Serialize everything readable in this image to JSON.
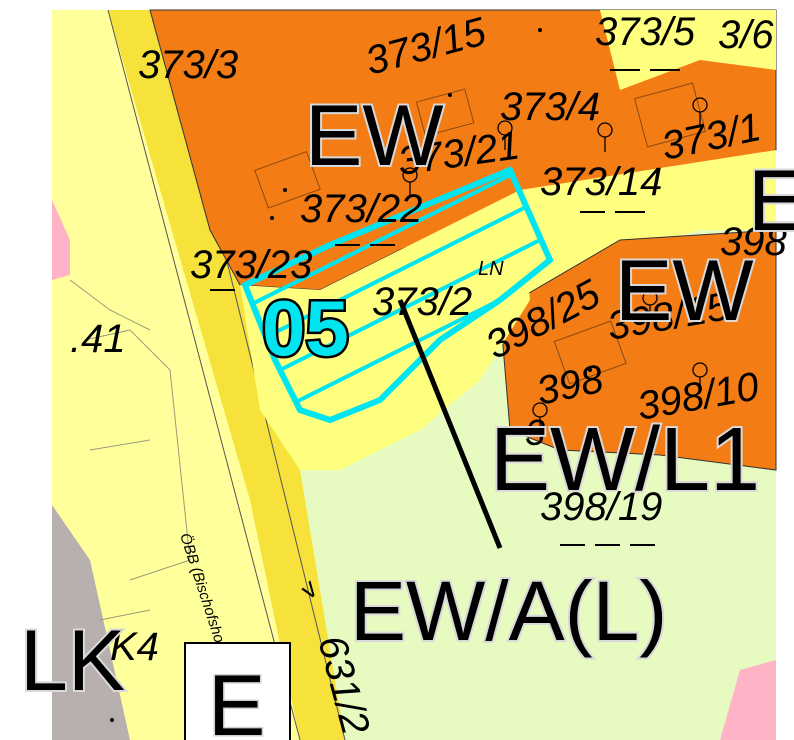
{
  "colors": {
    "background": "#ffffff",
    "residential_orange": "#f47c15",
    "road_yellow": "#ffff7f",
    "railway_yellow": "#f6e23a",
    "green_area": "#e7fbc1",
    "pink_area": "#ffb3c6",
    "grey_area": "#b8b0ae",
    "highlight_cyan": "#00e5f0"
  },
  "marker_number": "05",
  "marker_hatch_code": "LN",
  "parcel_labels": {
    "p373_3": "373/3",
    "p373_15": "373/15",
    "p373_5": "373/5",
    "p373_top_right": "3/6",
    "p373_4": "373/4",
    "p373_21": "373/21",
    "p373_14": "373/14",
    "p373_1x": "373/1",
    "p373_22": "373/22",
    "p373_23": "373/23",
    "p373_2": "373/2",
    "p398_25": "398/25",
    "p398_right": "398",
    "p398_15": "398/15",
    "p398_8": "398",
    "p398_10": "398/10",
    "p398_19": "398/19",
    "p41": ".41",
    "p631": "631/2",
    "p_k4": "K4",
    "p_3": "3"
  },
  "zone_labels": {
    "ew_top": "EW",
    "ew_right": "EW",
    "e_right_edge": "E",
    "ewl1": "EW/L1",
    "ewal": "EW/A(L)",
    "lk": "LK",
    "e_box": "E"
  },
  "railway_label": "ÖBB (Bischofsh...",
  "rail_line_label": "ÖBB (Bischofshofen - Se"
}
